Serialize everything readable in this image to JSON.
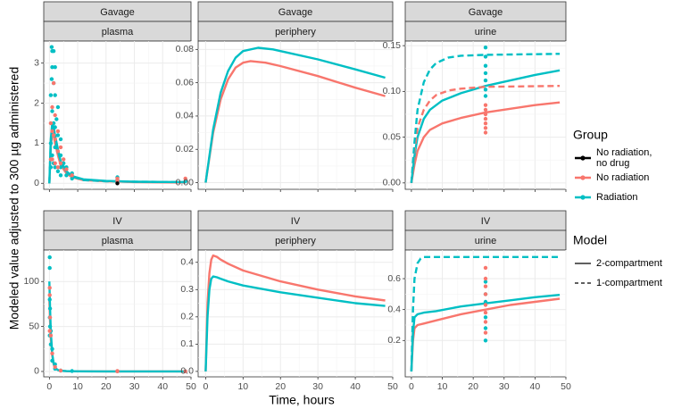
{
  "chart_data": {
    "type": "line",
    "xlabel": "Time, hours",
    "ylabel": "Modeled value adjusted to 300 µg administered",
    "xlim": [
      -2,
      50
    ],
    "x_ticks": [
      0,
      10,
      20,
      30,
      40,
      50
    ],
    "colors": {
      "no_radiation_no_drug": "#000000",
      "no_radiation": "#F8766D",
      "radiation": "#00BFC4"
    },
    "legend": {
      "group_title": "Group",
      "groups": [
        {
          "key": "no_radiation_no_drug",
          "label_lines": [
            "No radiation,",
            "no drug"
          ]
        },
        {
          "key": "no_radiation",
          "label_lines": [
            "No radiation"
          ]
        },
        {
          "key": "radiation",
          "label_lines": [
            "Radiation"
          ]
        }
      ],
      "model_title": "Model",
      "models": [
        {
          "key": "two",
          "label": "2-compartment",
          "dash": "solid"
        },
        {
          "key": "one",
          "label": "1-compartment",
          "dash": "dashed"
        }
      ]
    },
    "panels": [
      {
        "route": "Gavage",
        "compartment": "plasma",
        "ylim": [
          -0.15,
          3.55
        ],
        "y_ticks": [
          0,
          1,
          2,
          3
        ],
        "y_tick_labels": [
          "0",
          "1",
          "2",
          "3"
        ],
        "series": [
          {
            "group": "no_radiation",
            "model": "two",
            "x": [
              0,
              0.5,
              1,
              1.5,
              2,
              3,
              4,
              6,
              8,
              12,
              20,
              30,
              48
            ],
            "y": [
              0,
              0.9,
              1.25,
              1.2,
              1.0,
              0.7,
              0.45,
              0.25,
              0.15,
              0.08,
              0.05,
              0.03,
              0.02
            ]
          },
          {
            "group": "radiation",
            "model": "two",
            "x": [
              0,
              0.5,
              1,
              1.5,
              2,
              3,
              4,
              6,
              8,
              12,
              20,
              30,
              48
            ],
            "y": [
              0,
              1.1,
              1.5,
              1.4,
              1.2,
              0.85,
              0.55,
              0.3,
              0.18,
              0.1,
              0.06,
              0.04,
              0.03
            ]
          },
          {
            "group": "radiation",
            "model": "one",
            "x": [
              0,
              0.5,
              1,
              2,
              3,
              4,
              6,
              8,
              12,
              20,
              30,
              48
            ],
            "y": [
              0,
              1.0,
              1.35,
              1.1,
              0.8,
              0.55,
              0.3,
              0.17,
              0.08,
              0.05,
              0.04,
              0.03
            ]
          }
        ],
        "points": [
          {
            "group": "radiation",
            "x": [
              0.5,
              0.5,
              0.5,
              0.8,
              0.8,
              1,
              1,
              1,
              1,
              1.5,
              1.5,
              1.5,
              1.5,
              2,
              2,
              2,
              2,
              2,
              2.5,
              3,
              3,
              3,
              3,
              4,
              4,
              4,
              4,
              5,
              6,
              6,
              8,
              8,
              24,
              24,
              24,
              48
            ],
            "y": [
              0.4,
              1.0,
              2.2,
              3.4,
              2.6,
              3.3,
              2.9,
              1.8,
              0.7,
              3.3,
              2.5,
              1.5,
              0.5,
              2.9,
              2.2,
              1.4,
              0.9,
              0.4,
              1.6,
              1.9,
              1.2,
              0.8,
              0.3,
              1.1,
              0.7,
              0.4,
              0.2,
              0.5,
              0.4,
              0.2,
              0.25,
              0.12,
              0.15,
              0.08,
              0.05,
              0.05
            ]
          },
          {
            "group": "no_radiation",
            "x": [
              0.5,
              0.5,
              1,
              1,
              1,
              1.5,
              1.5,
              2,
              2,
              2,
              3,
              3,
              3,
              4,
              4,
              5,
              6,
              8,
              24,
              24,
              48
            ],
            "y": [
              0.6,
              1.5,
              1.9,
              1.3,
              0.6,
              2.5,
              1.2,
              1.7,
              1.1,
              0.5,
              1.3,
              0.8,
              0.4,
              0.9,
              0.5,
              0.6,
              0.35,
              0.2,
              0.12,
              0.06,
              0.12
            ]
          },
          {
            "group": "no_radiation_no_drug",
            "x": [
              24
            ],
            "y": [
              0.0
            ]
          }
        ]
      },
      {
        "route": "Gavage",
        "compartment": "periphery",
        "ylim": [
          -0.004,
          0.085
        ],
        "y_ticks": [
          0,
          0.02,
          0.04,
          0.06,
          0.08
        ],
        "y_tick_labels": [
          "0.00",
          "0.02",
          "0.04",
          "0.06",
          "0.08"
        ],
        "series": [
          {
            "group": "no_radiation",
            "model": "two",
            "x": [
              0,
              2,
              4,
              6,
              8,
              10,
              12,
              16,
              20,
              30,
              40,
              48
            ],
            "y": [
              0,
              0.03,
              0.05,
              0.062,
              0.069,
              0.072,
              0.073,
              0.072,
              0.07,
              0.064,
              0.057,
              0.052
            ]
          },
          {
            "group": "radiation",
            "model": "two",
            "x": [
              0,
              2,
              4,
              6,
              8,
              10,
              14,
              18,
              20,
              30,
              40,
              48
            ],
            "y": [
              0,
              0.032,
              0.054,
              0.067,
              0.075,
              0.079,
              0.081,
              0.08,
              0.079,
              0.074,
              0.068,
              0.063
            ]
          }
        ],
        "points": []
      },
      {
        "route": "Gavage",
        "compartment": "urine",
        "ylim": [
          -0.007,
          0.155
        ],
        "y_ticks": [
          0,
          0.05,
          0.1,
          0.15
        ],
        "y_tick_labels": [
          "0.00",
          "0.05",
          "0.10",
          "0.15"
        ],
        "series": [
          {
            "group": "no_radiation",
            "model": "two",
            "x": [
              0,
              1,
              2,
              4,
              6,
              10,
              16,
              24,
              32,
              40,
              48
            ],
            "y": [
              0,
              0.02,
              0.035,
              0.05,
              0.058,
              0.065,
              0.071,
              0.077,
              0.081,
              0.085,
              0.088
            ]
          },
          {
            "group": "radiation",
            "model": "two",
            "x": [
              0,
              1,
              2,
              4,
              6,
              10,
              16,
              24,
              32,
              40,
              48
            ],
            "y": [
              0,
              0.03,
              0.05,
              0.07,
              0.08,
              0.09,
              0.098,
              0.106,
              0.112,
              0.118,
              0.123
            ]
          },
          {
            "group": "no_radiation",
            "model": "one",
            "x": [
              0,
              1,
              2,
              4,
              6,
              8,
              12,
              16,
              24,
              48
            ],
            "y": [
              0,
              0.035,
              0.06,
              0.08,
              0.09,
              0.096,
              0.101,
              0.103,
              0.105,
              0.106
            ]
          },
          {
            "group": "radiation",
            "model": "one",
            "x": [
              0,
              1,
              2,
              4,
              6,
              8,
              12,
              16,
              24,
              48
            ],
            "y": [
              0,
              0.045,
              0.08,
              0.11,
              0.124,
              0.131,
              0.137,
              0.139,
              0.14,
              0.141
            ]
          }
        ],
        "points": [
          {
            "group": "radiation",
            "x": [
              24,
              24,
              24,
              24,
              24,
              24,
              24
            ],
            "y": [
              0.148,
              0.138,
              0.128,
              0.12,
              0.112,
              0.102,
              0.095
            ]
          },
          {
            "group": "no_radiation",
            "x": [
              24,
              24,
              24,
              24,
              24,
              24,
              24
            ],
            "y": [
              0.085,
              0.08,
              0.075,
              0.07,
              0.065,
              0.06,
              0.055
            ]
          }
        ]
      },
      {
        "route": "IV",
        "compartment": "plasma",
        "ylim": [
          -6,
          135
        ],
        "y_ticks": [
          0,
          50,
          100
        ],
        "y_tick_labels": [
          "0",
          "50",
          "100"
        ],
        "series": [
          {
            "group": "no_radiation",
            "model": "two",
            "x": [
              0,
              0.25,
              0.5,
              1,
              1.5,
              2,
              3,
              4,
              6,
              10,
              20,
              48
            ],
            "y": [
              80,
              55,
              38,
              18,
              8,
              4,
              1.5,
              0.8,
              0.4,
              0.2,
              0.1,
              0.05
            ]
          },
          {
            "group": "radiation",
            "model": "two",
            "x": [
              0,
              0.25,
              0.5,
              1,
              1.5,
              2,
              3,
              4,
              6,
              10,
              20,
              48
            ],
            "y": [
              100,
              70,
              45,
              20,
              9,
              4,
              1.5,
              0.8,
              0.4,
              0.2,
              0.1,
              0.05
            ]
          }
        ],
        "points": [
          {
            "group": "radiation",
            "x": [
              0.1,
              0.1,
              0.1,
              0.1,
              0.1,
              0.25,
              0.25,
              0.5,
              0.5,
              1,
              1,
              2,
              2,
              4,
              8,
              24,
              48
            ],
            "y": [
              127,
              115,
              80,
              60,
              40,
              70,
              50,
              45,
              30,
              25,
              12,
              8,
              3,
              1,
              0.5,
              0.3,
              0.2
            ]
          },
          {
            "group": "no_radiation",
            "x": [
              0.1,
              0.1,
              0.1,
              0.25,
              0.5,
              1,
              2,
              4,
              24,
              24,
              48
            ],
            "y": [
              93,
              85,
              45,
              60,
              40,
              20,
              5,
              1,
              0.5,
              0.2,
              0.2
            ]
          }
        ]
      },
      {
        "route": "IV",
        "compartment": "periphery",
        "ylim": [
          -0.02,
          0.445
        ],
        "y_ticks": [
          0,
          0.1,
          0.2,
          0.3,
          0.4
        ],
        "y_tick_labels": [
          "0.0",
          "0.1",
          "0.2",
          "0.3",
          "0.4"
        ],
        "series": [
          {
            "group": "no_radiation",
            "model": "two",
            "x": [
              0,
              0.5,
              1,
              1.5,
              2,
              3,
              4,
              6,
              10,
              20,
              30,
              40,
              48
            ],
            "y": [
              0,
              0.25,
              0.36,
              0.41,
              0.425,
              0.42,
              0.41,
              0.395,
              0.37,
              0.33,
              0.3,
              0.275,
              0.26
            ]
          },
          {
            "group": "radiation",
            "model": "two",
            "x": [
              0,
              0.5,
              1,
              1.5,
              2,
              3,
              4,
              6,
              10,
              20,
              30,
              40,
              48
            ],
            "y": [
              0,
              0.2,
              0.3,
              0.34,
              0.348,
              0.345,
              0.34,
              0.33,
              0.315,
              0.29,
              0.27,
              0.25,
              0.24
            ]
          }
        ],
        "points": []
      },
      {
        "route": "IV",
        "compartment": "urine",
        "ylim": [
          -0.035,
          0.785
        ],
        "y_ticks": [
          0.2,
          0.4,
          0.6
        ],
        "y_tick_labels": [
          "0.2",
          "0.4",
          "0.6"
        ],
        "series": [
          {
            "group": "no_radiation",
            "model": "two",
            "x": [
              0,
              0.5,
              1,
              2,
              4,
              8,
              16,
              24,
              32,
              40,
              48
            ],
            "y": [
              0,
              0.2,
              0.28,
              0.3,
              0.31,
              0.33,
              0.37,
              0.4,
              0.43,
              0.45,
              0.47
            ]
          },
          {
            "group": "radiation",
            "model": "two",
            "x": [
              0,
              0.5,
              1,
              2,
              4,
              8,
              16,
              24,
              32,
              40,
              48
            ],
            "y": [
              0,
              0.25,
              0.35,
              0.37,
              0.38,
              0.39,
              0.42,
              0.44,
              0.46,
              0.48,
              0.495
            ]
          },
          {
            "group": "radiation",
            "model": "one",
            "x": [
              0,
              0.5,
              1,
              2,
              3,
              4,
              6,
              10,
              20,
              30,
              40,
              48
            ],
            "y": [
              0,
              0.4,
              0.6,
              0.7,
              0.73,
              0.74,
              0.74,
              0.74,
              0.74,
              0.74,
              0.74,
              0.74
            ]
          }
        ],
        "points": [
          {
            "group": "radiation",
            "x": [
              24,
              24,
              24,
              24,
              24,
              24
            ],
            "y": [
              0.58,
              0.5,
              0.45,
              0.35,
              0.28,
              0.2
            ]
          },
          {
            "group": "no_radiation",
            "x": [
              24,
              24,
              24,
              24,
              24,
              24,
              24,
              24
            ],
            "y": [
              0.67,
              0.6,
              0.55,
              0.5,
              0.43,
              0.38,
              0.32,
              0.25
            ]
          }
        ]
      }
    ]
  }
}
